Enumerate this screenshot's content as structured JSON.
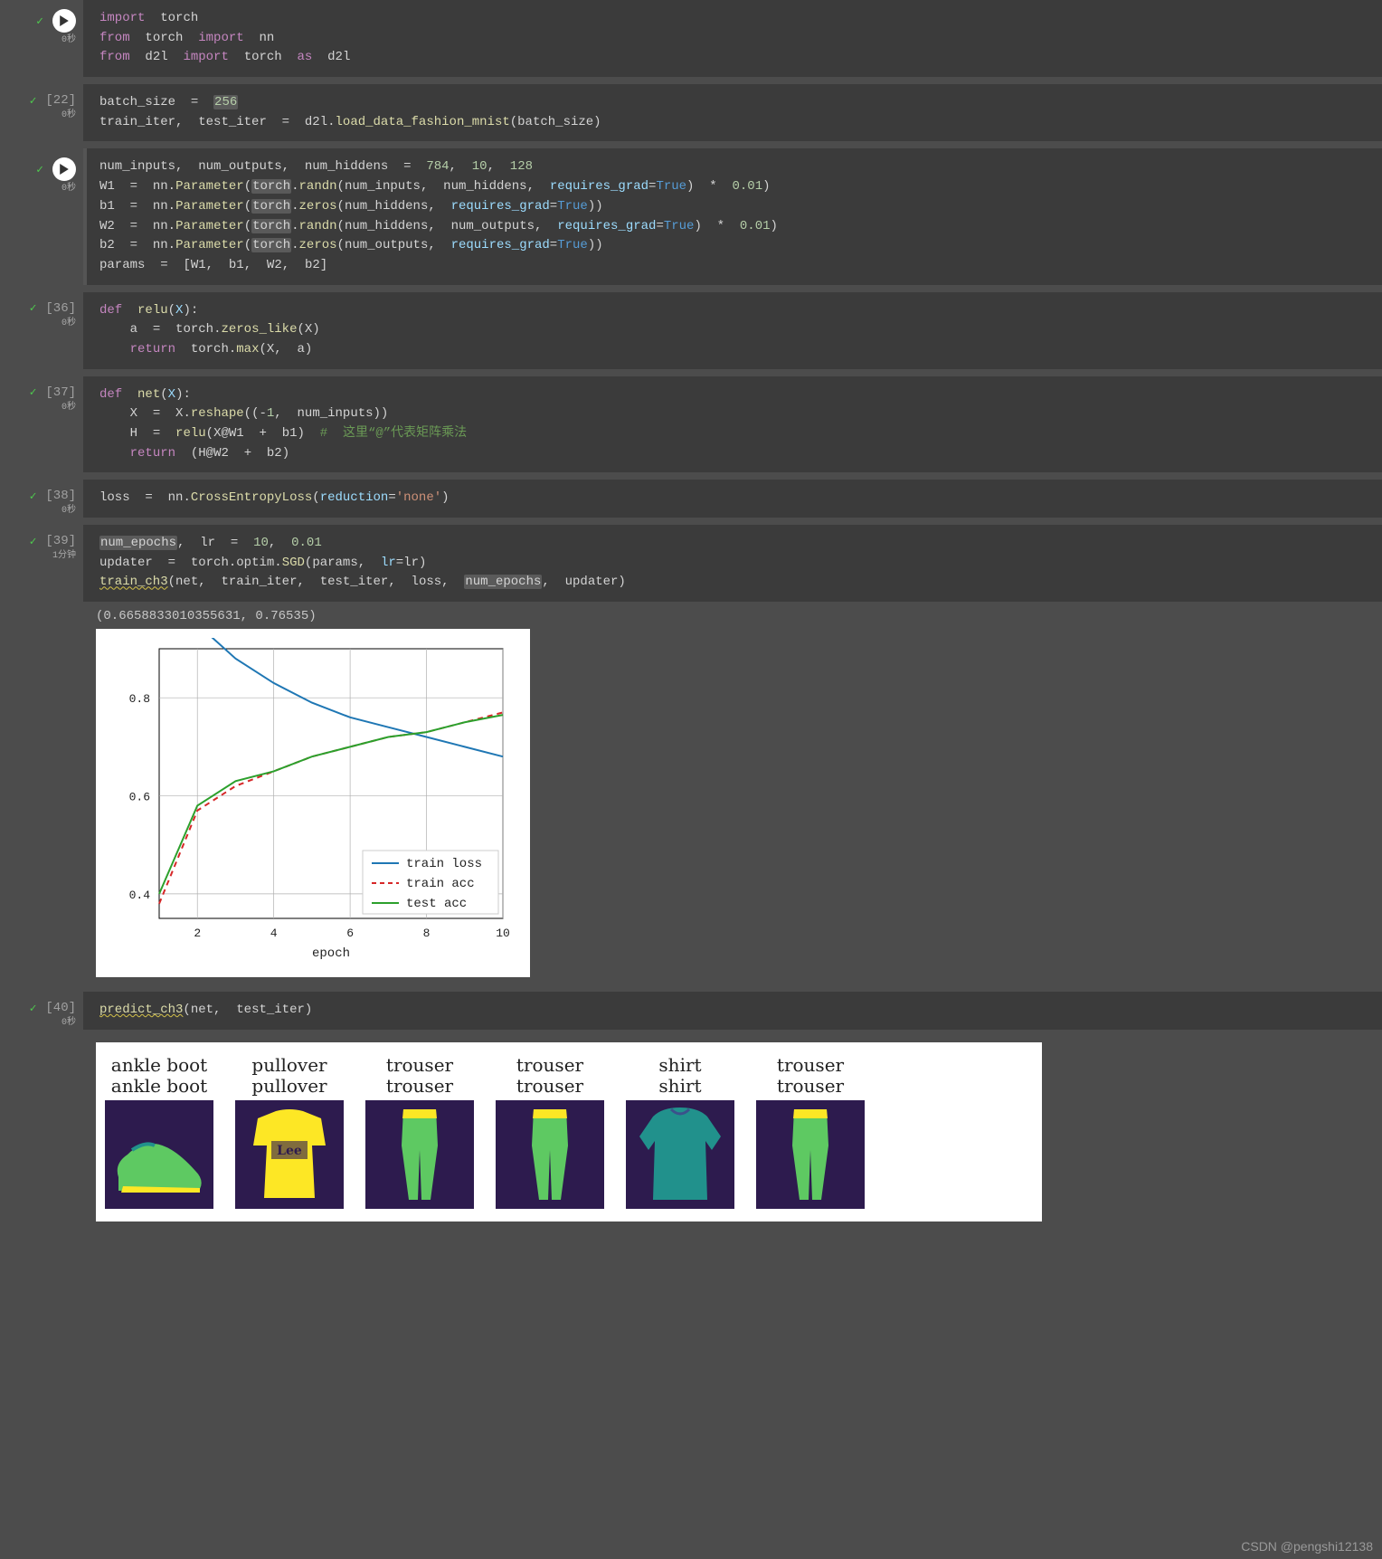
{
  "watermark": "CSDN @pengshi12138",
  "cells": [
    {
      "status": "ok",
      "exec_time": "0秒",
      "has_run_btn": true,
      "code_html": "<span class='kw'>import</span>  <span class='id'>torch</span>\n<span class='kw'>from</span>  <span class='id'>torch</span>  <span class='kw'>import</span>  <span class='id'>nn</span>\n<span class='kw'>from</span>  <span class='id'>d2l</span>  <span class='kw'>import</span>  <span class='id'>torch</span>  <span class='kw'>as</span>  <span class='id'>d2l</span>"
    },
    {
      "status": "ok",
      "exec_time": "0秒",
      "exec_count": "[22]",
      "code_html": "<span class='id'>batch_size</span>  <span class='op'>=</span>  <span class='num hl'>256</span>\n<span class='id'>train_iter</span>,  <span class='id'>test_iter</span>  <span class='op'>=</span>  <span class='id'>d2l</span>.<span class='fn'>load_data_fashion_mnist</span>(<span class='id'>batch_size</span>)"
    },
    {
      "status": "ok",
      "exec_time": "0秒",
      "has_run_btn": true,
      "running": true,
      "code_html": "<span class='id'>num_inputs</span>,  <span class='id'>num_outputs</span>,  <span class='id'>num_hiddens</span>  <span class='op'>=</span>  <span class='num'>784</span>,  <span class='num'>10</span>,  <span class='num'>128</span>\n<span class='id'>W1</span>  <span class='op'>=</span>  <span class='id'>nn</span>.<span class='fn'>Parameter</span>(<span class='id hl'>torch</span>.<span class='fn'>randn</span>(<span class='id'>num_inputs</span>,  <span class='id'>num_hiddens</span>,  <span class='py'>requires_grad</span>=<span class='bool'>True</span>)  <span class='op'>*</span>  <span class='num'>0.01</span>)\n<span class='id'>b1</span>  <span class='op'>=</span>  <span class='id'>nn</span>.<span class='fn'>Parameter</span>(<span class='id hl'>torch</span>.<span class='fn'>zeros</span>(<span class='id'>num_hiddens</span>,  <span class='py'>requires_grad</span>=<span class='bool'>True</span>))\n<span class='id'>W2</span>  <span class='op'>=</span>  <span class='id'>nn</span>.<span class='fn'>Parameter</span>(<span class='id hl'>torch</span>.<span class='fn'>randn</span>(<span class='id'>num_hiddens</span>,  <span class='id'>num_outputs</span>,  <span class='py'>requires_grad</span>=<span class='bool'>True</span>)  <span class='op'>*</span>  <span class='num'>0.01</span>)\n<span class='id'>b2</span>  <span class='op'>=</span>  <span class='id'>nn</span>.<span class='fn'>Parameter</span>(<span class='id hl'>torch</span>.<span class='fn'>zeros</span>(<span class='id'>num_outputs</span>,  <span class='py'>requires_grad</span>=<span class='bool'>True</span>))\n<span class='id'>params</span>  <span class='op'>=</span>  [<span class='id'>W1</span>,  <span class='id'>b1</span>,  <span class='id'>W2</span>,  <span class='id'>b2</span>]"
    },
    {
      "status": "ok",
      "exec_time": "0秒",
      "exec_count": "[36]",
      "code_html": "<span class='kw'>def</span>  <span class='fn'>relu</span>(<span class='py'>X</span>):\n    <span class='id'>a</span>  <span class='op'>=</span>  <span class='id'>torch</span>.<span class='fn'>zeros_like</span>(<span class='id'>X</span>)\n    <span class='kw'>return</span>  <span class='id'>torch</span>.<span class='fn'>max</span>(<span class='id'>X</span>,  <span class='id'>a</span>)"
    },
    {
      "status": "ok",
      "exec_time": "0秒",
      "exec_count": "[37]",
      "code_html": "<span class='kw'>def</span>  <span class='fn'>net</span>(<span class='py'>X</span>):\n    <span class='id'>X</span>  <span class='op'>=</span>  <span class='id'>X</span>.<span class='fn'>reshape</span>((<span class='op'>-</span><span class='num'>1</span>,  <span class='id'>num_inputs</span>))\n    <span class='id'>H</span>  <span class='op'>=</span>  <span class='fn'>relu</span>(<span class='id'>X</span><span class='op'>@</span><span class='id'>W1</span>  <span class='op'>+</span>  <span class='id'>b1</span>)  <span class='cmt'>#  这里&ldquo;@&rdquo;代表矩阵乘法</span>\n    <span class='kw'>return</span>  (<span class='id'>H</span><span class='op'>@</span><span class='id'>W2</span>  <span class='op'>+</span>  <span class='id'>b2</span>)"
    },
    {
      "status": "ok",
      "exec_time": "0秒",
      "exec_count": "[38]",
      "code_html": "<span class='id'>loss</span>  <span class='op'>=</span>  <span class='id'>nn</span>.<span class='fn'>CrossEntropyLoss</span>(<span class='py'>reduction</span>=<span class='str'>'none'</span>)"
    },
    {
      "status": "ok",
      "exec_time": "1分钟",
      "exec_count": "[39]",
      "code_html": "<span class='id hl'>num_epochs</span>,  <span class='id'>lr</span>  <span class='op'>=</span>  <span class='num'>10</span>,  <span class='num'>0.01</span>\n<span class='id'>updater</span>  <span class='op'>=</span>  <span class='id'>torch</span>.<span class='id'>optim</span>.<span class='fn'>SGD</span>(<span class='id'>params</span>,  <span class='py'>lr</span>=<span class='id'>lr</span>)\n<span class='fn wavy-yel'>train_ch3</span>(<span class='id'>net</span>,  <span class='id'>train_iter</span>,  <span class='id'>test_iter</span>,  <span class='id'>loss</span>,  <span class='id hl'>num_epochs</span>,  <span class='id'>updater</span>)",
      "output_text": "(0.6658833010355631, 0.76535)",
      "has_chart": true
    },
    {
      "status": "ok",
      "exec_time": "0秒",
      "exec_count": "[40]",
      "code_html": "<span class='fn wavy-yel'>predict_ch3</span>(<span class='id'>net</span>,  <span class='id'>test_iter</span>)",
      "has_predictions": true
    }
  ],
  "chart": {
    "type": "line",
    "xlabel": "epoch",
    "xlim": [
      1,
      10
    ],
    "xtick_step": 2,
    "ylim": [
      0.35,
      0.9
    ],
    "yticks": [
      0.4,
      0.6,
      0.8
    ],
    "background_color": "#ffffff",
    "grid_color": "#b0b0b0",
    "axis_color": "#000000",
    "label_fontsize": 14,
    "tick_fontsize": 13,
    "legend_fontsize": 14,
    "legend_pos": "lower-right",
    "series": [
      {
        "name": "train loss",
        "color": "#1f77b4",
        "style": "solid",
        "width": 2,
        "x": [
          1,
          2,
          3,
          4,
          5,
          6,
          7,
          8,
          9,
          10
        ],
        "y": [
          1.05,
          0.95,
          0.88,
          0.83,
          0.79,
          0.76,
          0.74,
          0.72,
          0.7,
          0.68
        ]
      },
      {
        "name": "train acc",
        "color": "#d62728",
        "style": "dashed",
        "width": 2,
        "x": [
          1,
          2,
          3,
          4,
          5,
          6,
          7,
          8,
          9,
          10
        ],
        "y": [
          0.38,
          0.57,
          0.62,
          0.65,
          0.68,
          0.7,
          0.72,
          0.73,
          0.75,
          0.77
        ]
      },
      {
        "name": "test acc",
        "color": "#2ca02c",
        "style": "solid",
        "width": 2,
        "x": [
          1,
          2,
          3,
          4,
          5,
          6,
          7,
          8,
          9,
          10
        ],
        "y": [
          0.4,
          0.58,
          0.63,
          0.65,
          0.68,
          0.7,
          0.72,
          0.73,
          0.75,
          0.765
        ]
      }
    ]
  },
  "predictions": {
    "label_fontsize": 20,
    "label_color": "#222222",
    "img_bg": "#2d1b4e",
    "img_size": 120,
    "colormap": [
      "#2d1b4e",
      "#3b518b",
      "#21918c",
      "#5ec962",
      "#fde725"
    ],
    "items": [
      {
        "true": "ankle boot",
        "pred": "ankle boot",
        "shape": "shoe"
      },
      {
        "true": "pullover",
        "pred": "pullover",
        "shape": "pullover"
      },
      {
        "true": "trouser",
        "pred": "trouser",
        "shape": "trouser"
      },
      {
        "true": "trouser",
        "pred": "trouser",
        "shape": "trouser"
      },
      {
        "true": "shirt",
        "pred": "shirt",
        "shape": "shirt"
      },
      {
        "true": "trouser",
        "pred": "trouser",
        "shape": "trouser"
      }
    ]
  }
}
